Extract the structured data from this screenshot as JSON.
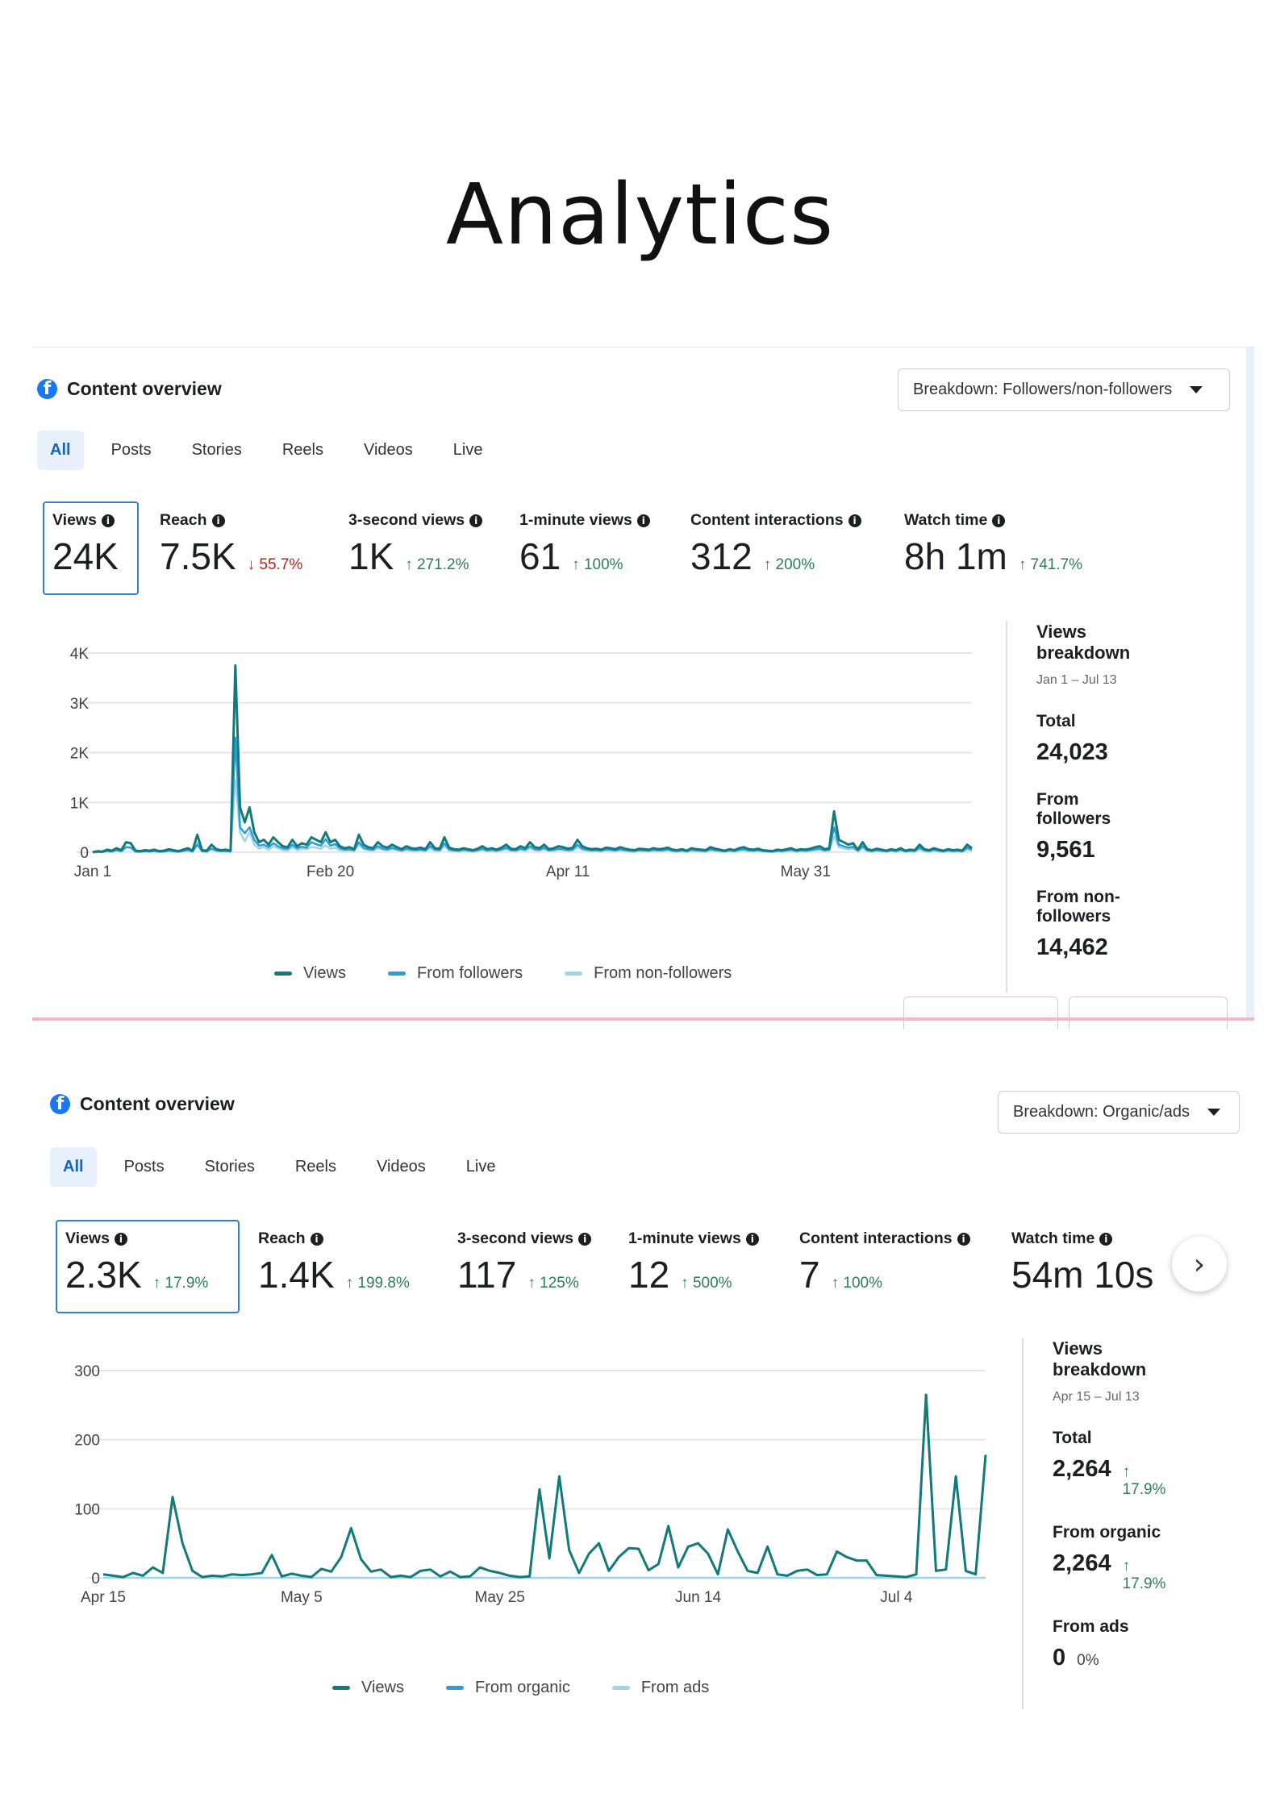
{
  "page_title": "Analytics",
  "colors": {
    "views": "#127a7a",
    "followers": "#2a9fd6",
    "non_followers": "#9fd4ee",
    "up": "#2e7d5b",
    "down": "#b3261e",
    "facebook": "#1877f2"
  },
  "panel1": {
    "header": "Content overview",
    "fb_glyph": "f",
    "breakdown": "Breakdown: Followers/non-followers",
    "tabs": [
      "All",
      "Posts",
      "Stories",
      "Reels",
      "Videos",
      "Live"
    ],
    "metrics": [
      {
        "label": "Views",
        "value": "24K",
        "change": "",
        "dir": ""
      },
      {
        "label": "Reach",
        "value": "7.5K",
        "change": "↓ 55.7%",
        "dir": "down"
      },
      {
        "label": "3-second views",
        "value": "1K",
        "change": "↑ 271.2%",
        "dir": "up"
      },
      {
        "label": "1-minute views",
        "value": "61",
        "change": "↑ 100%",
        "dir": "up"
      },
      {
        "label": "Content interactions",
        "value": "312",
        "change": "↑ 200%",
        "dir": "up"
      },
      {
        "label": "Watch time",
        "value": "8h 1m",
        "change": "↑ 741.7%",
        "dir": "up"
      }
    ],
    "side": {
      "title": "Views breakdown",
      "date_range": "Jan 1 – Jul 13",
      "items": [
        {
          "key": "Total",
          "value": "24,023",
          "change": ""
        },
        {
          "key": "From followers",
          "value": "9,561",
          "change": ""
        },
        {
          "key": "From non-followers",
          "value": "14,462",
          "change": ""
        }
      ]
    },
    "legend": [
      "Views",
      "From followers",
      "From non-followers"
    ]
  },
  "panel2": {
    "header": "Content overview",
    "fb_glyph": "f",
    "breakdown": "Breakdown: Organic/ads",
    "tabs": [
      "All",
      "Posts",
      "Stories",
      "Reels",
      "Videos",
      "Live"
    ],
    "metrics": [
      {
        "label": "Views",
        "value": "2.3K",
        "change": "↑ 17.9%",
        "dir": "up"
      },
      {
        "label": "Reach",
        "value": "1.4K",
        "change": "↑ 199.8%",
        "dir": "up"
      },
      {
        "label": "3-second views",
        "value": "117",
        "change": "↑ 125%",
        "dir": "up"
      },
      {
        "label": "1-minute views",
        "value": "12",
        "change": "↑ 500%",
        "dir": "up"
      },
      {
        "label": "Content interactions",
        "value": "7",
        "change": "↑ 100%",
        "dir": "up"
      },
      {
        "label": "Watch time",
        "value": "54m 10s",
        "change": "",
        "dir": "up"
      }
    ],
    "next_glyph": "›",
    "side": {
      "title": "Views breakdown",
      "date_range": "Apr 15 – Jul 13",
      "items": [
        {
          "key": "Total",
          "value": "2,264",
          "change": "↑ 17.9%"
        },
        {
          "key": "From organic",
          "value": "2,264",
          "change": "↑ 17.9%"
        },
        {
          "key": "From ads",
          "value": "0",
          "change": "0%"
        }
      ]
    },
    "legend": [
      "Views",
      "From organic",
      "From ads"
    ]
  },
  "chart_data": [
    {
      "type": "line",
      "ylim": [
        0,
        4000
      ],
      "yticks": [
        "0",
        "1K",
        "2K",
        "3K",
        "4K"
      ],
      "ytick_values": [
        0,
        1000,
        2000,
        3000,
        4000
      ],
      "xticks": [
        "Jan 1",
        "Feb 20",
        "Apr 11",
        "May 31"
      ],
      "xtick_day_index": [
        0,
        50,
        100,
        150
      ],
      "grid": true,
      "legend_position": "bottom",
      "series": [
        {
          "name": "Views",
          "values": [
            0,
            20,
            10,
            50,
            30,
            80,
            40,
            200,
            180,
            30,
            20,
            40,
            30,
            50,
            20,
            30,
            60,
            40,
            20,
            50,
            80,
            30,
            350,
            40,
            30,
            150,
            60,
            40,
            50,
            30,
            3750,
            900,
            600,
            900,
            400,
            200,
            250,
            150,
            300,
            200,
            120,
            100,
            250,
            120,
            180,
            150,
            300,
            250,
            200,
            400,
            200,
            250,
            120,
            80,
            100,
            60,
            350,
            150,
            100,
            80,
            200,
            120,
            90,
            150,
            100,
            60,
            120,
            80,
            70,
            90,
            60,
            200,
            80,
            70,
            300,
            90,
            60,
            50,
            80,
            60,
            40,
            70,
            120,
            60,
            80,
            50,
            90,
            150,
            70,
            60,
            120,
            80,
            200,
            100,
            80,
            150,
            60,
            80,
            120,
            100,
            70,
            90,
            250,
            120,
            80,
            60,
            70,
            50,
            90,
            80,
            60,
            100,
            70,
            50,
            40,
            70,
            60,
            50,
            80,
            60,
            70,
            90,
            50,
            40,
            60,
            30,
            80,
            60,
            50,
            40,
            100,
            70,
            50,
            30,
            60,
            40,
            80,
            100,
            60,
            50,
            70,
            40,
            30,
            20,
            50,
            40,
            60,
            80,
            40,
            60,
            50,
            70,
            100,
            120,
            60,
            80,
            820,
            250,
            200,
            150,
            180,
            50,
            200,
            60,
            40,
            70,
            50,
            30,
            60,
            40,
            80,
            30,
            50,
            40,
            150,
            60,
            40,
            80,
            50,
            30,
            60,
            40,
            50,
            30,
            150,
            80
          ]
        },
        {
          "name": "From followers",
          "values": [
            0,
            10,
            5,
            25,
            15,
            40,
            20,
            100,
            90,
            15,
            10,
            20,
            15,
            25,
            10,
            15,
            30,
            20,
            10,
            25,
            40,
            15,
            150,
            20,
            15,
            70,
            30,
            20,
            25,
            15,
            2300,
            500,
            380,
            500,
            250,
            130,
            150,
            100,
            180,
            120,
            80,
            70,
            150,
            80,
            110,
            90,
            200,
            160,
            130,
            260,
            130,
            160,
            80,
            50,
            60,
            40,
            200,
            90,
            60,
            50,
            120,
            70,
            55,
            90,
            60,
            35,
            70,
            50,
            40,
            55,
            35,
            120,
            50,
            40,
            180,
            55,
            35,
            30,
            50,
            35,
            25,
            40,
            70,
            35,
            50,
            30,
            55,
            90,
            40,
            35,
            70,
            50,
            120,
            60,
            50,
            90,
            35,
            50,
            70,
            60,
            40,
            55,
            150,
            70,
            50,
            35,
            40,
            30,
            55,
            50,
            35,
            60,
            40,
            30,
            25,
            40,
            35,
            30,
            50,
            35,
            40,
            55,
            30,
            25,
            35,
            20,
            50,
            35,
            30,
            25,
            60,
            40,
            30,
            20,
            35,
            25,
            50,
            60,
            35,
            30,
            40,
            25,
            20,
            10,
            30,
            25,
            35,
            50,
            25,
            35,
            30,
            40,
            60,
            70,
            35,
            50,
            500,
            150,
            120,
            90,
            110,
            30,
            120,
            35,
            25,
            40,
            30,
            20,
            35,
            25,
            50,
            20,
            30,
            25,
            90,
            35,
            25,
            50,
            30,
            20,
            35,
            25,
            30,
            20,
            90,
            50
          ]
        },
        {
          "name": "From non-followers",
          "values": [
            0,
            10,
            5,
            25,
            15,
            40,
            20,
            100,
            90,
            15,
            10,
            20,
            15,
            25,
            10,
            15,
            30,
            20,
            10,
            25,
            40,
            15,
            200,
            20,
            15,
            80,
            30,
            20,
            25,
            15,
            1450,
            400,
            220,
            400,
            150,
            70,
            100,
            50,
            120,
            80,
            40,
            30,
            100,
            40,
            70,
            60,
            100,
            90,
            70,
            140,
            70,
            90,
            40,
            30,
            40,
            20,
            150,
            60,
            40,
            30,
            80,
            50,
            35,
            60,
            40,
            25,
            50,
            30,
            30,
            35,
            25,
            80,
            30,
            30,
            120,
            35,
            25,
            20,
            30,
            25,
            15,
            30,
            50,
            25,
            30,
            20,
            35,
            60,
            30,
            25,
            50,
            30,
            80,
            40,
            30,
            60,
            25,
            30,
            50,
            40,
            30,
            35,
            100,
            50,
            30,
            25,
            30,
            20,
            35,
            30,
            25,
            40,
            30,
            20,
            15,
            30,
            25,
            20,
            30,
            25,
            30,
            35,
            20,
            15,
            25,
            10,
            30,
            25,
            20,
            15,
            40,
            30,
            20,
            10,
            25,
            15,
            30,
            40,
            25,
            20,
            30,
            15,
            10,
            10,
            20,
            15,
            25,
            30,
            15,
            25,
            20,
            30,
            40,
            50,
            25,
            30,
            320,
            100,
            80,
            60,
            70,
            20,
            80,
            25,
            15,
            30,
            20,
            10,
            25,
            15,
            30,
            10,
            20,
            15,
            60,
            25,
            15,
            30,
            20,
            10,
            25,
            15,
            20,
            10,
            60,
            30
          ]
        }
      ]
    },
    {
      "type": "line",
      "ylim": [
        0,
        300
      ],
      "yticks": [
        "0",
        "100",
        "200",
        "300"
      ],
      "ytick_values": [
        0,
        100,
        200,
        300
      ],
      "xticks": [
        "Apr 15",
        "May 5",
        "May 25",
        "Jun 14",
        "Jul 4"
      ],
      "xtick_day_index": [
        0,
        20,
        40,
        60,
        80
      ],
      "grid": true,
      "legend_position": "bottom",
      "series": [
        {
          "name": "Views",
          "values": [
            5,
            3,
            1,
            7,
            3,
            15,
            7,
            117,
            50,
            10,
            1,
            3,
            2,
            5,
            4,
            5,
            7,
            33,
            2,
            6,
            3,
            1,
            13,
            9,
            30,
            72,
            27,
            9,
            12,
            1,
            3,
            1,
            10,
            12,
            2,
            9,
            1,
            2,
            15,
            10,
            7,
            3,
            1,
            2,
            128,
            28,
            147,
            40,
            7,
            35,
            50,
            10,
            30,
            43,
            42,
            11,
            20,
            75,
            15,
            45,
            50,
            35,
            5,
            70,
            38,
            10,
            7,
            45,
            5,
            3,
            10,
            12,
            4,
            5,
            38,
            30,
            25,
            25,
            4,
            3,
            2,
            1,
            5,
            265,
            10,
            12,
            147,
            10,
            5,
            178
          ]
        },
        {
          "name": "From organic",
          "values": [
            5,
            3,
            1,
            7,
            3,
            15,
            7,
            117,
            50,
            10,
            1,
            3,
            2,
            5,
            4,
            5,
            7,
            33,
            2,
            6,
            3,
            1,
            13,
            9,
            30,
            72,
            27,
            9,
            12,
            1,
            3,
            1,
            10,
            12,
            2,
            9,
            1,
            2,
            15,
            10,
            7,
            3,
            1,
            2,
            128,
            28,
            147,
            40,
            7,
            35,
            50,
            10,
            30,
            43,
            42,
            11,
            20,
            75,
            15,
            45,
            50,
            35,
            5,
            70,
            38,
            10,
            7,
            45,
            5,
            3,
            10,
            12,
            4,
            5,
            38,
            30,
            25,
            25,
            4,
            3,
            2,
            1,
            5,
            265,
            10,
            12,
            147,
            10,
            5,
            178
          ]
        },
        {
          "name": "From ads",
          "values": [
            0,
            0,
            0,
            0,
            0,
            0,
            0,
            0,
            0,
            0,
            0,
            0,
            0,
            0,
            0,
            0,
            0,
            0,
            0,
            0,
            0,
            0,
            0,
            0,
            0,
            0,
            0,
            0,
            0,
            0,
            0,
            0,
            0,
            0,
            0,
            0,
            0,
            0,
            0,
            0,
            0,
            0,
            0,
            0,
            0,
            0,
            0,
            0,
            0,
            0,
            0,
            0,
            0,
            0,
            0,
            0,
            0,
            0,
            0,
            0,
            0,
            0,
            0,
            0,
            0,
            0,
            0,
            0,
            0,
            0,
            0,
            0,
            0,
            0,
            0,
            0,
            0,
            0,
            0,
            0,
            0,
            0,
            0,
            0,
            0,
            0,
            0,
            0,
            0,
            0
          ]
        }
      ]
    }
  ]
}
